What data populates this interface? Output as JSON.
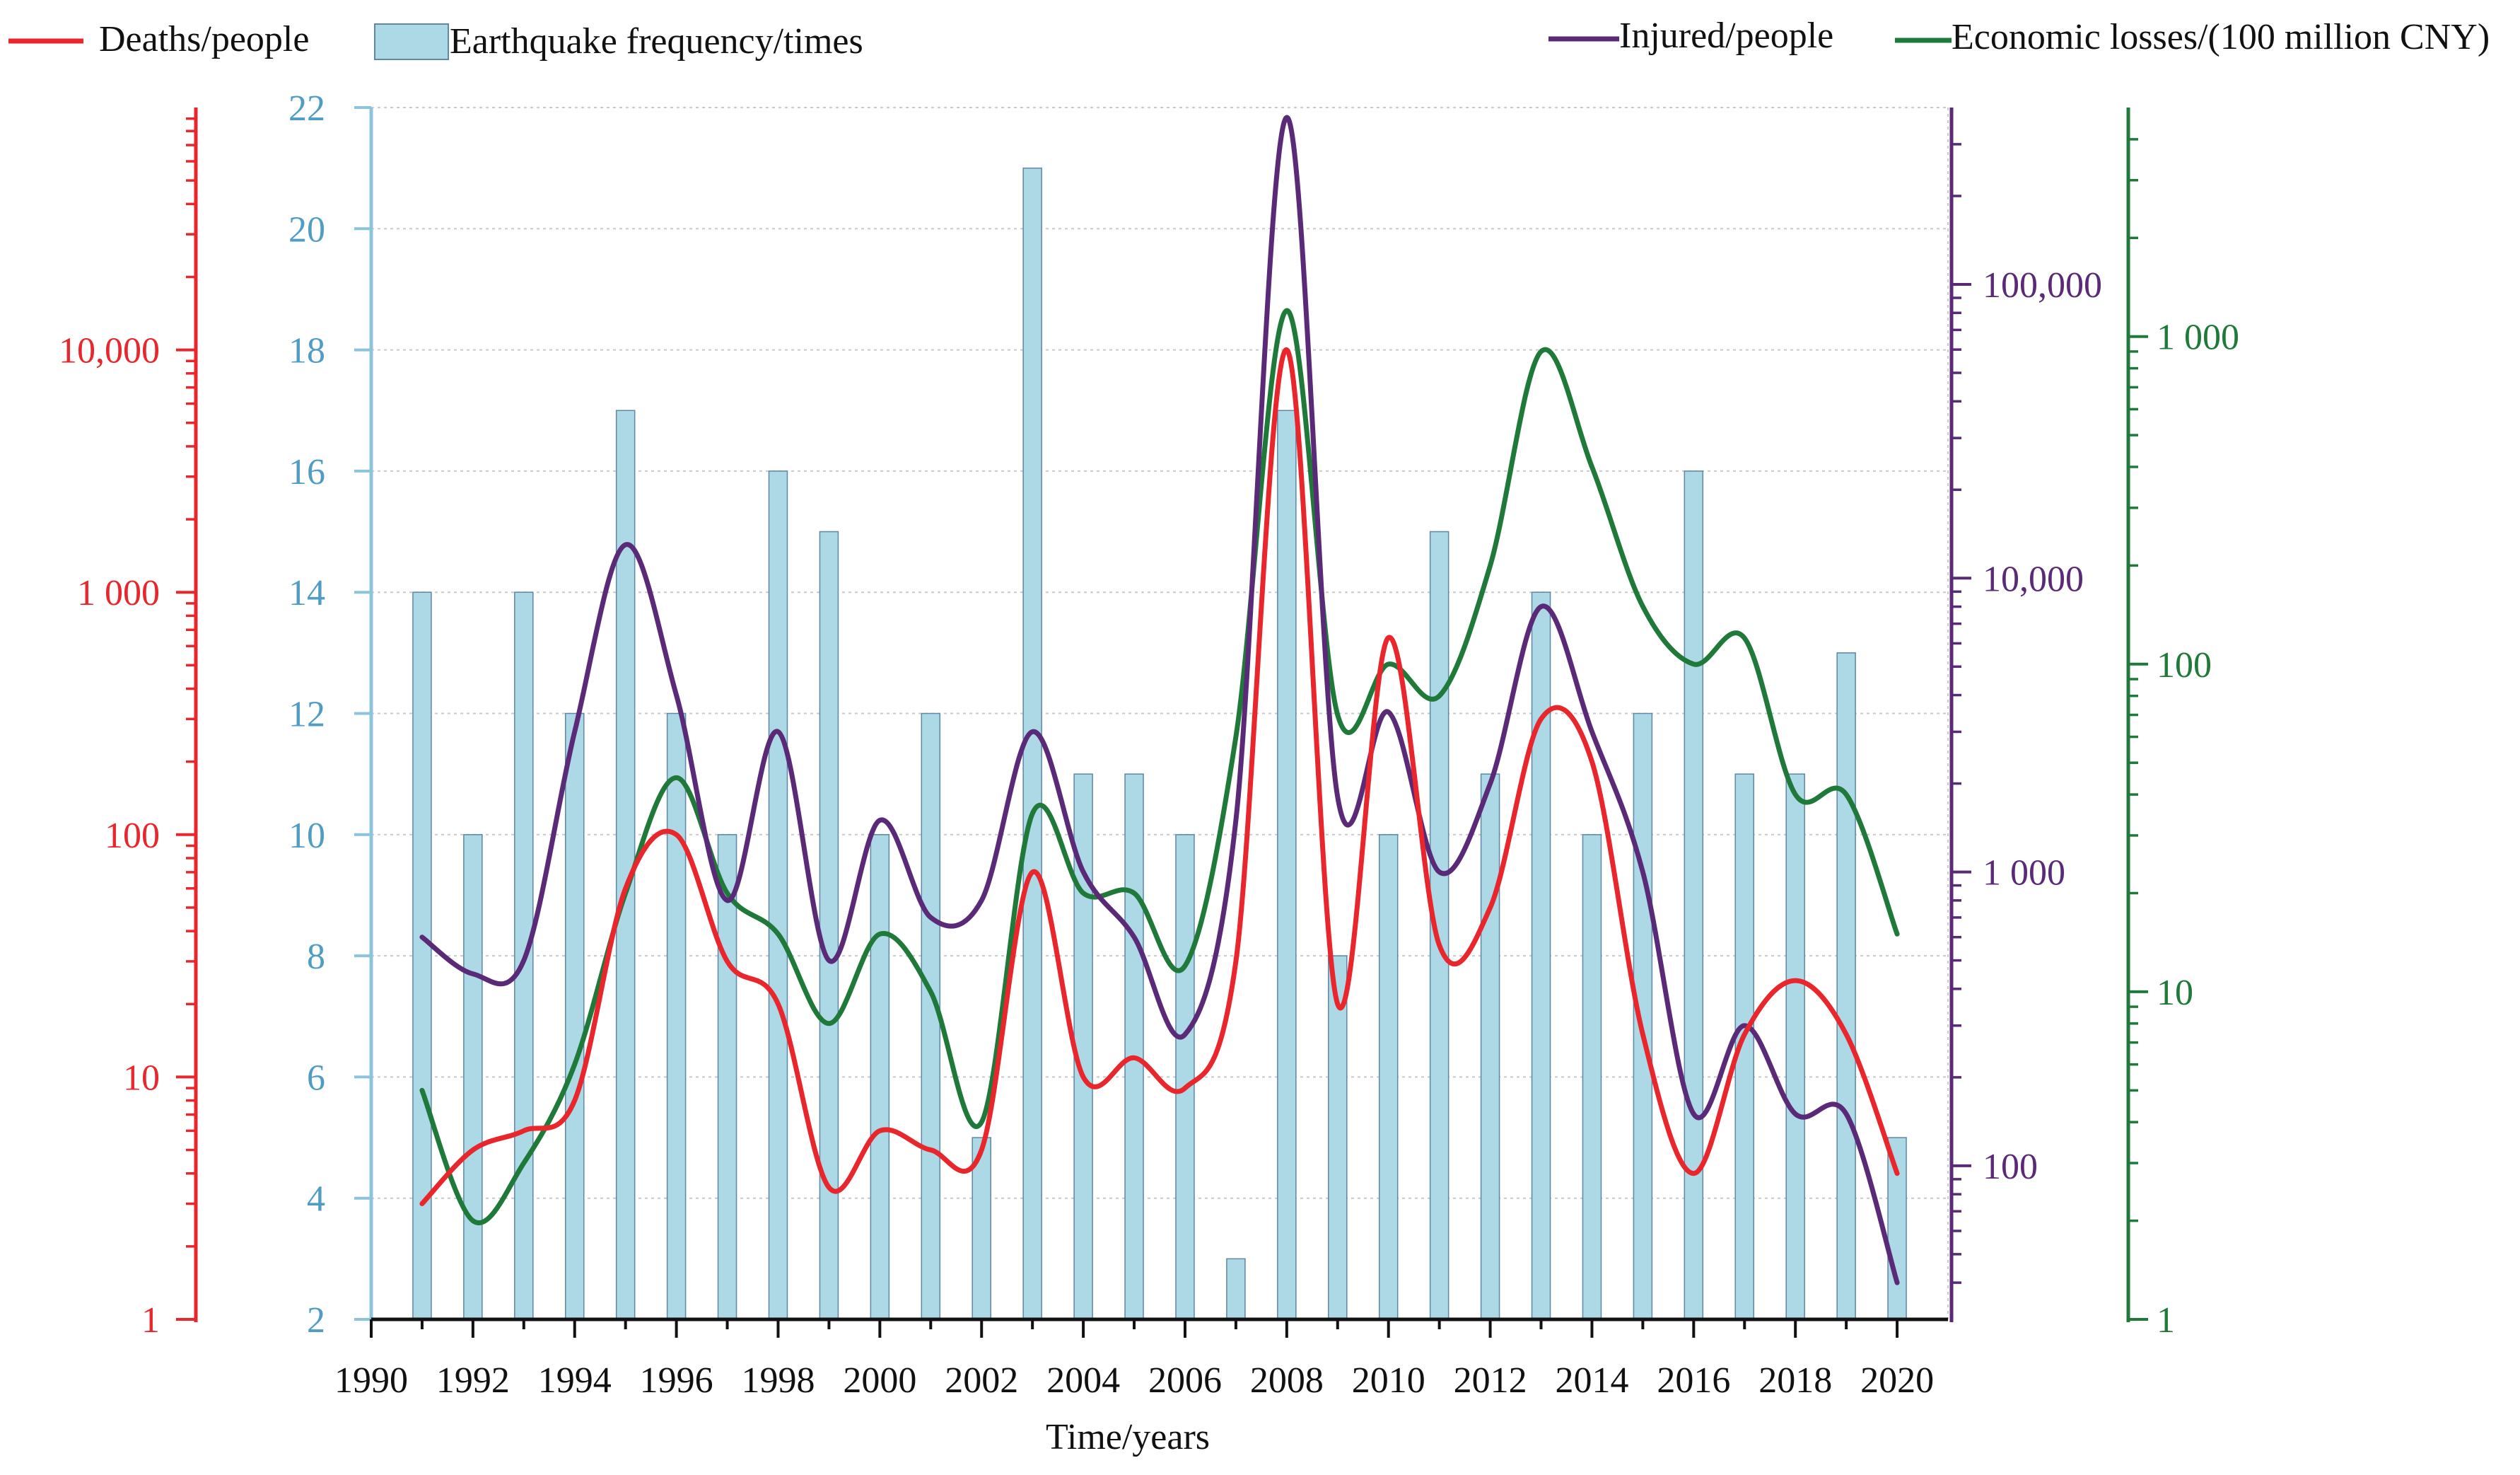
{
  "legend": {
    "deaths": "Deaths/people",
    "frequency": "Earthquake frequency/times",
    "injured": "Injured/people",
    "losses": "Economic losses/(100 million CNY)"
  },
  "colors": {
    "deaths": "#e8262c",
    "frequency_fill": "#add8e6",
    "frequency_stroke": "#5f87a6",
    "frequency_axis": "#8cc4dc",
    "frequency_tick_text": "#4f9cc4",
    "injured": "#5a2a78",
    "losses": "#1f7a3a",
    "grid": "#c9c9c9",
    "text": "#111111"
  },
  "chart_data": {
    "type": "bar",
    "xlabel": "Time/years",
    "x_ticks": [
      1990,
      1992,
      1994,
      1996,
      1998,
      2000,
      2002,
      2004,
      2006,
      2008,
      2010,
      2012,
      2014,
      2016,
      2018,
      2020
    ],
    "xlim": [
      1990,
      2021
    ],
    "grid": true,
    "axes": {
      "frequency": {
        "label": "Earthquake frequency/times",
        "scale": "linear",
        "range": [
          2,
          22
        ],
        "ticks": [
          2,
          4,
          6,
          8,
          10,
          12,
          14,
          16,
          18,
          20,
          22
        ]
      },
      "deaths": {
        "label": "Deaths/people",
        "scale": "log",
        "range": [
          1,
          100000
        ],
        "ticks": [
          1,
          10,
          100,
          1000,
          10000
        ],
        "tick_labels": [
          "1",
          "10",
          "100",
          "1 000",
          "10,000"
        ]
      },
      "injured": {
        "label": "Injured/people",
        "scale": "log",
        "range": [
          30,
          400000
        ],
        "ticks": [
          100,
          1000,
          10000,
          100000
        ],
        "tick_labels": [
          "100",
          "1 000",
          "10,000",
          "100,000"
        ]
      },
      "losses": {
        "label": "Economic losses/(100 million CNY)",
        "scale": "log",
        "range": [
          1,
          5000
        ],
        "ticks": [
          1,
          10,
          100,
          1000
        ],
        "tick_labels": [
          "1",
          "10",
          "100",
          "1 000"
        ]
      }
    },
    "series": [
      {
        "name": "Earthquake frequency/times",
        "type": "bar",
        "axis": "frequency",
        "x": [
          1991,
          1992,
          1993,
          1994,
          1995,
          1996,
          1997,
          1998,
          1999,
          2000,
          2001,
          2002,
          2003,
          2004,
          2005,
          2006,
          2007,
          2008,
          2009,
          2010,
          2011,
          2012,
          2013,
          2014,
          2015,
          2016,
          2017,
          2018,
          2019,
          2020
        ],
        "values": [
          14,
          10,
          14,
          12,
          17,
          12,
          10,
          16,
          15,
          10,
          12,
          5,
          21,
          11,
          11,
          10,
          3,
          17,
          8,
          10,
          15,
          11,
          14,
          10,
          12,
          16,
          11,
          11,
          13,
          5
        ]
      },
      {
        "name": "Deaths/people",
        "type": "line",
        "axis": "deaths",
        "x": [
          1991,
          1992,
          1993,
          1994,
          1995,
          1996,
          1997,
          1998,
          1999,
          2000,
          2001,
          2002,
          2003,
          2004,
          2005,
          2006,
          2007,
          2008,
          2009,
          2010,
          2011,
          2012,
          2013,
          2014,
          2015,
          2016,
          2017,
          2018,
          2019,
          2020
        ],
        "values": [
          3,
          5,
          6,
          8,
          60,
          100,
          30,
          20,
          3.5,
          6,
          5,
          5,
          70,
          10,
          12,
          9,
          30,
          10000,
          20,
          650,
          35,
          50,
          300,
          200,
          15,
          4,
          15,
          25,
          15,
          4
        ]
      },
      {
        "name": "Injured/people",
        "type": "line",
        "axis": "injured",
        "x": [
          1991,
          1992,
          1993,
          1994,
          1995,
          1996,
          1997,
          1998,
          1999,
          2000,
          2001,
          2002,
          2003,
          2004,
          2005,
          2006,
          2007,
          2008,
          2009,
          2010,
          2011,
          2012,
          2013,
          2014,
          2015,
          2016,
          2017,
          2018,
          2019,
          2020
        ],
        "values": [
          600,
          450,
          500,
          3000,
          13000,
          4000,
          800,
          3000,
          500,
          1500,
          700,
          800,
          3000,
          1000,
          600,
          280,
          1500,
          370000,
          1800,
          3500,
          1000,
          2000,
          8000,
          3000,
          1000,
          150,
          300,
          150,
          150,
          40
        ]
      },
      {
        "name": "Economic losses/(100 million CNY)",
        "type": "line",
        "axis": "losses",
        "x": [
          1991,
          1992,
          1993,
          1994,
          1995,
          1996,
          1997,
          1998,
          1999,
          2000,
          2001,
          2002,
          2003,
          2004,
          2005,
          2006,
          2007,
          2008,
          2009,
          2010,
          2011,
          2012,
          2013,
          2014,
          2015,
          2016,
          2017,
          2018,
          2019,
          2020
        ],
        "values": [
          5,
          2,
          3,
          6,
          20,
          45,
          20,
          15,
          8,
          15,
          10,
          4,
          35,
          20,
          20,
          12,
          60,
          1200,
          70,
          100,
          80,
          200,
          900,
          400,
          150,
          100,
          120,
          40,
          40,
          15
        ]
      }
    ]
  }
}
